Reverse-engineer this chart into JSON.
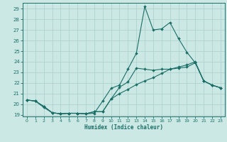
{
  "xlabel": "Humidex (Indice chaleur)",
  "bg_color": "#cce8e4",
  "grid_color": "#aacfcc",
  "line_color": "#1a6e68",
  "xlim_min": -0.5,
  "xlim_max": 23.5,
  "ylim_min": 18.85,
  "ylim_max": 29.55,
  "xticks": [
    0,
    1,
    2,
    3,
    4,
    5,
    6,
    7,
    8,
    9,
    10,
    11,
    12,
    13,
    14,
    15,
    16,
    17,
    18,
    19,
    20,
    21,
    22,
    23
  ],
  "yticks": [
    19,
    20,
    21,
    22,
    23,
    24,
    25,
    26,
    27,
    28,
    29
  ],
  "line1_x": [
    0,
    1,
    2,
    3,
    4,
    5,
    6,
    7,
    8,
    9,
    10,
    11,
    12,
    13,
    14,
    15,
    16,
    17,
    18,
    19,
    20,
    21,
    22,
    23
  ],
  "line1_y": [
    20.4,
    20.3,
    19.7,
    19.2,
    19.1,
    19.15,
    19.15,
    19.1,
    19.15,
    20.3,
    21.5,
    21.8,
    23.3,
    24.8,
    29.2,
    27.0,
    27.1,
    27.7,
    26.2,
    24.9,
    23.9,
    22.2,
    21.8,
    21.55
  ],
  "line2_x": [
    0,
    1,
    2,
    3,
    4,
    5,
    6,
    7,
    8,
    9,
    10,
    11,
    12,
    13,
    14,
    15,
    16,
    17,
    18,
    19,
    20,
    21,
    22,
    23
  ],
  "line2_y": [
    20.4,
    20.3,
    19.8,
    19.2,
    19.1,
    19.15,
    19.15,
    19.1,
    19.3,
    19.3,
    20.5,
    21.6,
    22.1,
    23.4,
    23.3,
    23.2,
    23.3,
    23.3,
    23.4,
    23.5,
    23.9,
    22.2,
    21.8,
    21.55
  ],
  "line3_x": [
    0,
    1,
    2,
    3,
    4,
    5,
    6,
    7,
    8,
    9,
    10,
    11,
    12,
    13,
    14,
    15,
    16,
    17,
    18,
    19,
    20,
    21,
    22,
    23
  ],
  "line3_y": [
    20.4,
    20.3,
    19.8,
    19.2,
    19.1,
    19.15,
    19.15,
    19.1,
    19.3,
    19.3,
    20.5,
    21.0,
    21.4,
    21.85,
    22.2,
    22.5,
    22.9,
    23.3,
    23.5,
    23.7,
    24.0,
    22.2,
    21.8,
    21.55
  ]
}
